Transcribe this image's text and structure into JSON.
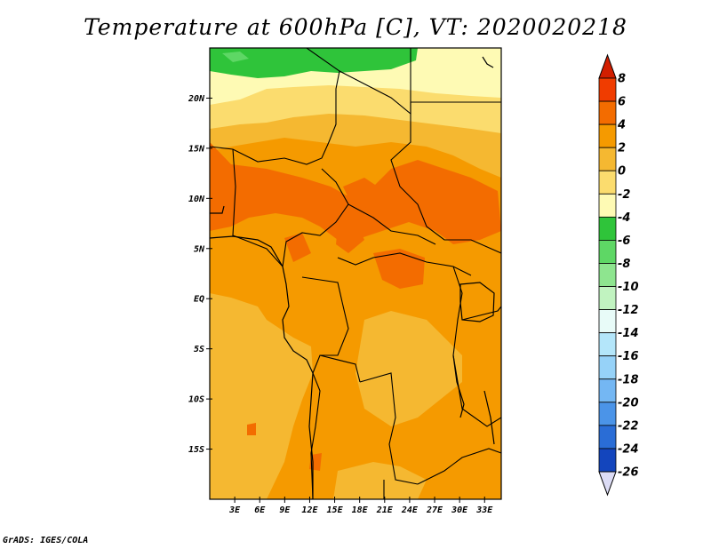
{
  "title": "Temperature at 600hPa [C], VT: 2020020218",
  "credit": "GrADS: IGES/COLA",
  "map": {
    "lon_range": [
      0,
      35
    ],
    "lat_range": [
      -20,
      25
    ],
    "lon_ticks": [
      {
        "value": 3,
        "label": "3E"
      },
      {
        "value": 6,
        "label": "6E"
      },
      {
        "value": 9,
        "label": "9E"
      },
      {
        "value": 12,
        "label": "12E"
      },
      {
        "value": 15,
        "label": "15E"
      },
      {
        "value": 18,
        "label": "18E"
      },
      {
        "value": 21,
        "label": "21E"
      },
      {
        "value": 24,
        "label": "24E"
      },
      {
        "value": 27,
        "label": "27E"
      },
      {
        "value": 30,
        "label": "30E"
      },
      {
        "value": 33,
        "label": "33E"
      }
    ],
    "lat_ticks": [
      {
        "value": 20,
        "label": "20N"
      },
      {
        "value": 15,
        "label": "15N"
      },
      {
        "value": 10,
        "label": "10N"
      },
      {
        "value": 5,
        "label": "5N"
      },
      {
        "value": 0,
        "label": "EQ"
      },
      {
        "value": -5,
        "label": "5S"
      },
      {
        "value": -10,
        "label": "10S"
      },
      {
        "value": -15,
        "label": "15S"
      }
    ]
  },
  "colorbar": {
    "labels": [
      "8",
      "6",
      "4",
      "2",
      "0",
      "-2",
      "-4",
      "-6",
      "-8",
      "-10",
      "-12",
      "-14",
      "-16",
      "-18",
      "-20",
      "-22",
      "-24",
      "-26"
    ],
    "colors_top_to_bottom": [
      "#e11400",
      "#f03c00",
      "#f36c00",
      "#f59a00",
      "#f5b831",
      "#fbdc6e",
      "#fefab4",
      "#2fc43a",
      "#5ed765",
      "#8ee58f",
      "#c1f3c0",
      "#e8fbf8",
      "#b4e6fa",
      "#96d2f8",
      "#74b7f3",
      "#4b94e8",
      "#2a6dd6",
      "#1345bd",
      "#0a208f"
    ],
    "top_arrow_color": "#d21e00",
    "bottom_arrow_color": "#dcdcf5"
  },
  "field_colors": {
    "green": "#2fc43a",
    "light_green": "#5ed765",
    "pale_yellow": "#fefab4",
    "yellow": "#fbdc6e",
    "light_orange": "#f5b831",
    "orange": "#f59a00",
    "dark_orange": "#f36c00",
    "red_orange": "#f03c00"
  }
}
